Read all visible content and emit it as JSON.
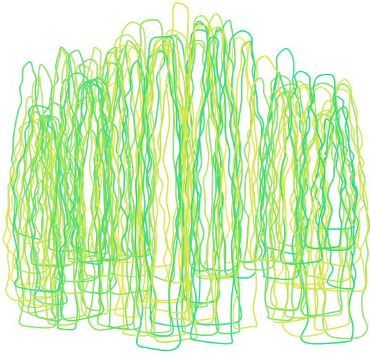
{
  "artwork": {
    "kind": "abstract-line-art",
    "subject": "layered-closed-loops",
    "background_color": "#ffffff",
    "palette": [
      "#2fdc86",
      "#56de6a",
      "#84e05c",
      "#b2e652",
      "#d4e54a",
      "#f0e33f"
    ],
    "loop_count": 110
  }
}
